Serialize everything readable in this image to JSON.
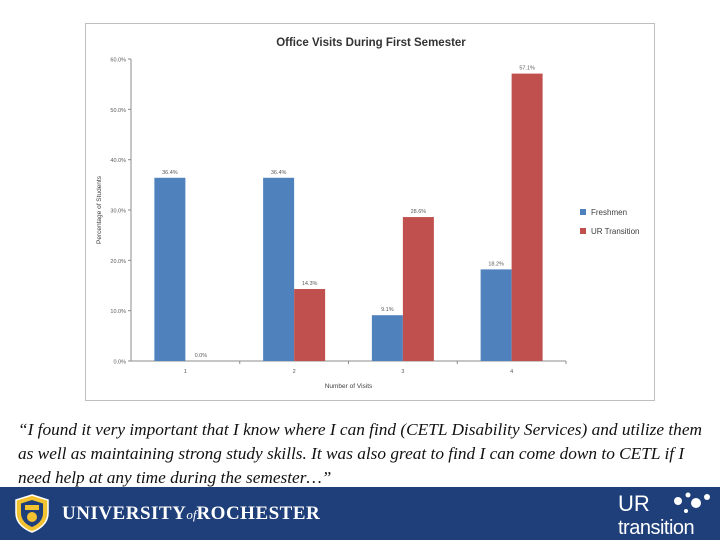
{
  "chart_data": {
    "type": "bar",
    "title": "Office Visits During First Semester",
    "xlabel": "Number of Visits",
    "ylabel": "Percentage of Students",
    "categories": [
      "1",
      "2",
      "3",
      "4"
    ],
    "ylim": [
      0,
      60
    ],
    "yticks": [
      "0.0%",
      "10.0%",
      "20.0%",
      "30.0%",
      "40.0%",
      "50.0%",
      "60.0%"
    ],
    "grid": false,
    "legend_position": "right",
    "series": [
      {
        "name": "Freshmen",
        "color": "#4f81bd",
        "values": [
          36.4,
          36.4,
          9.1,
          18.2
        ],
        "labels": [
          "36.4%",
          "36.4%",
          "9.1%",
          "18.2%"
        ]
      },
      {
        "name": "UR Transition",
        "color": "#c0504d",
        "values": [
          0.0,
          14.3,
          28.6,
          57.1
        ],
        "labels": [
          "0.0%",
          "14.3%",
          "28.6%",
          "57.1%"
        ]
      }
    ]
  },
  "quote": "“I found it very important that I know where I can find (CETL Disability Services) and utilize them as well as maintaining strong study skills. It was also great to find I can come down to CETL if I need help at any time during the semester…”",
  "footer": {
    "background_color": "#1f3f7a",
    "university_pre": "UNIVERSITY",
    "university_of": "of",
    "university_post": "ROCHESTER",
    "program_logo_line1": "UR",
    "program_logo_line2": "transition"
  }
}
